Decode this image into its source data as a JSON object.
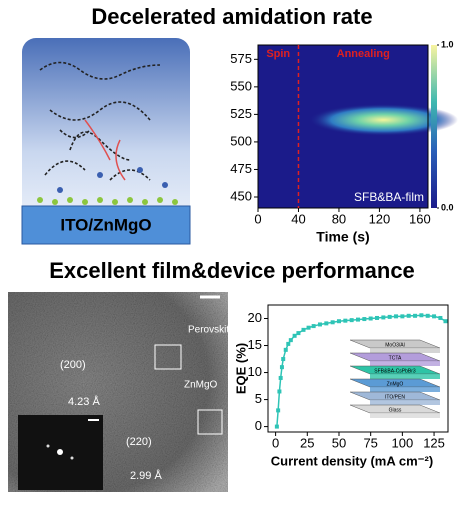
{
  "headings": [
    "Decelerated amidation rate",
    "Excellent film&device performance"
  ],
  "schematic": {
    "label": "ITO/ZnMgO"
  },
  "micrograph": {
    "labels": [
      "Perovskite",
      "ZnMgO",
      "(200)",
      "4.23 Å",
      "(220)",
      "2.99 Å"
    ]
  },
  "chart_data": [
    {
      "type": "heatmap",
      "xlabel": "Time (s)",
      "xlim": [
        0,
        168
      ],
      "xticks": [
        0,
        40,
        80,
        120,
        160
      ],
      "ylim": [
        440,
        588
      ],
      "yticks": [
        450,
        475,
        500,
        525,
        550,
        575
      ],
      "annotations": [
        "Spin",
        "Annealing",
        "SFB&BA-film"
      ],
      "stage_boundary": 40,
      "emission_center": 520,
      "emission_onset": 50,
      "clim": [
        0,
        1
      ],
      "cticks": [
        {
          "value": 0,
          "label": "0.0"
        },
        {
          "value": 1,
          "label": "1.0"
        }
      ]
    },
    {
      "type": "line",
      "xlabel": "Current density (mA cm⁻²)",
      "ylabel": "EQE (%)",
      "xlim": [
        -6,
        136
      ],
      "xticks": [
        0,
        25,
        50,
        75,
        100,
        125
      ],
      "ylim": [
        -1,
        22.5
      ],
      "yticks": [
        0,
        5,
        10,
        15,
        20
      ],
      "x": [
        1,
        2,
        3,
        4,
        5,
        6,
        8,
        10,
        12,
        15,
        18,
        22,
        26,
        30,
        35,
        40,
        45,
        50,
        55,
        60,
        65,
        70,
        75,
        80,
        85,
        90,
        95,
        100,
        105,
        110,
        115,
        120,
        125,
        130,
        134
      ],
      "values": [
        0,
        3,
        6.5,
        9,
        11,
        12.5,
        14.2,
        15.3,
        16,
        16.8,
        17.3,
        17.9,
        18.3,
        18.6,
        18.9,
        19.1,
        19.3,
        19.5,
        19.6,
        19.7,
        19.8,
        19.9,
        20,
        20.1,
        20.2,
        20.3,
        20.4,
        20.4,
        20.5,
        20.5,
        20.6,
        20.5,
        20.4,
        20.1,
        19.5
      ],
      "color": "#2ec4b6",
      "inset_layers": [
        "MoO3/Al",
        "TCTA",
        "SFB&BA-CsPbBr3",
        "ZnMgO",
        "ITO/PEN",
        "Glass"
      ]
    }
  ]
}
